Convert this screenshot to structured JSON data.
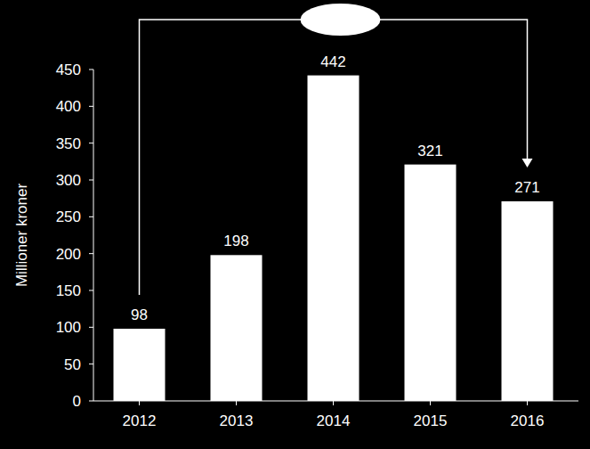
{
  "chart_data": {
    "type": "bar",
    "y_label": "Millioner kroner",
    "categories": [
      "2012",
      "2013",
      "2014",
      "2015",
      "2016"
    ],
    "values": [
      98,
      198,
      442,
      321,
      271
    ],
    "color": "#ffffff",
    "ylim": [
      0,
      450
    ],
    "yticks": [
      0,
      50,
      100,
      150,
      200,
      250,
      300,
      350,
      400,
      450
    ],
    "grid": false,
    "data_labels": true
  }
}
